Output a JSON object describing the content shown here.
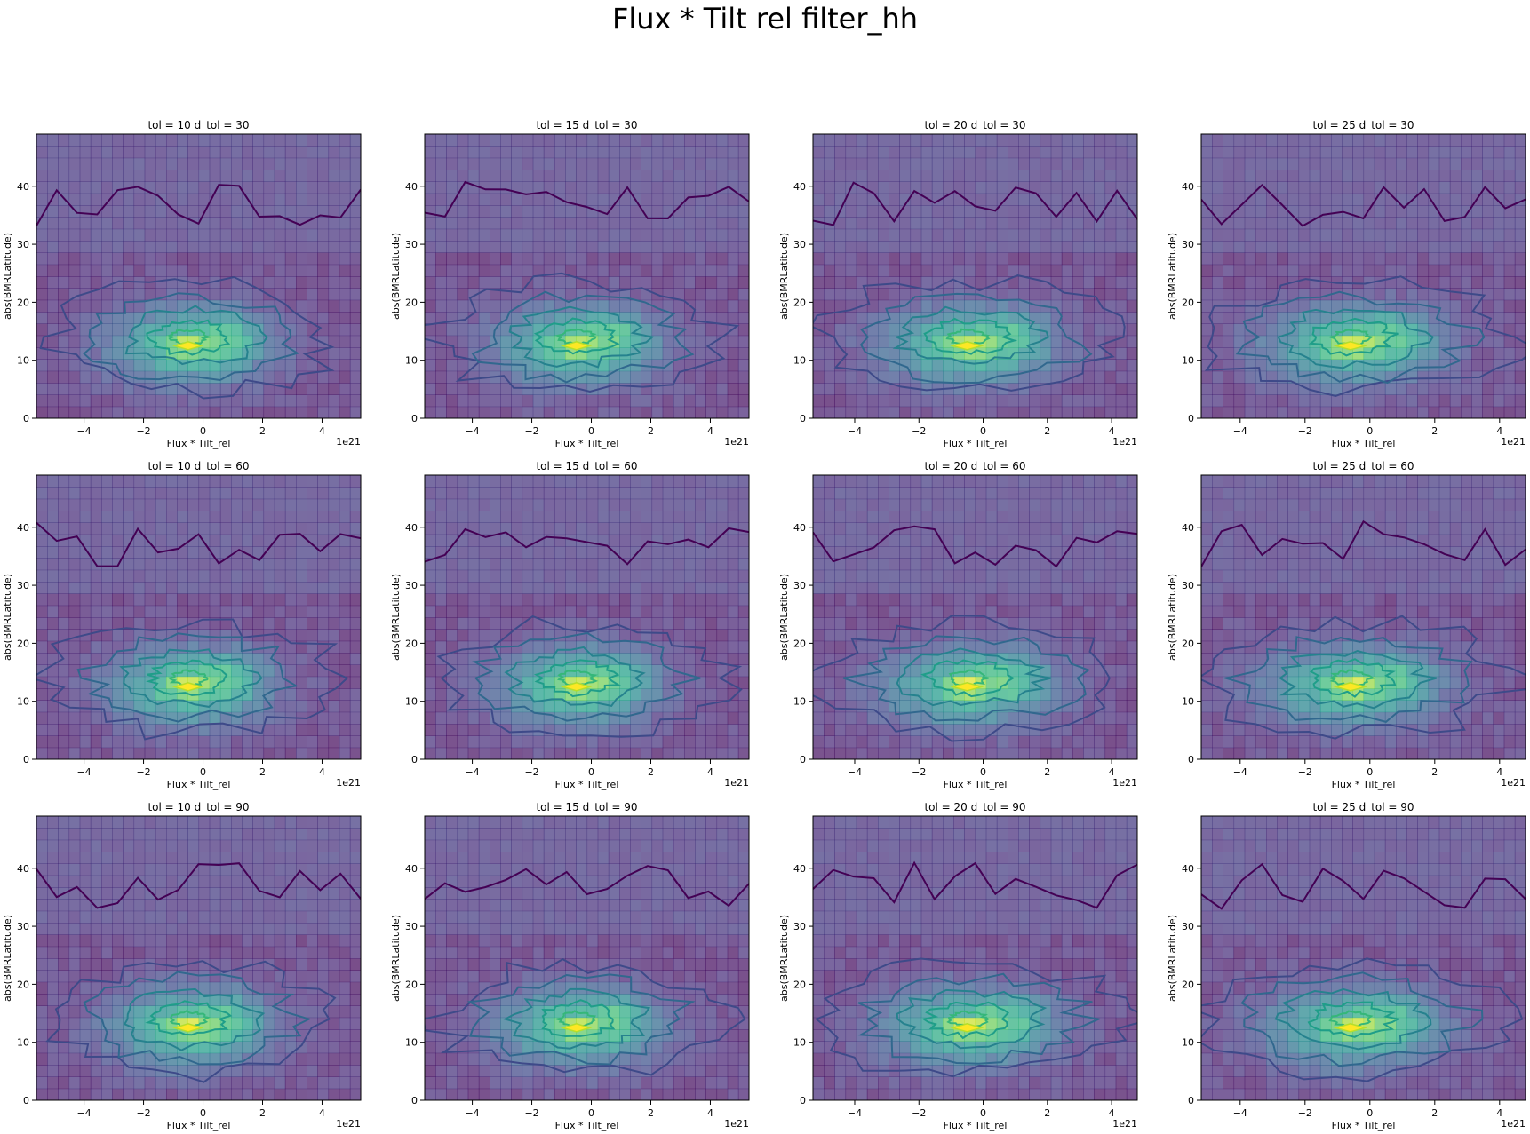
{
  "figure": {
    "suptitle": "Flux * Tilt rel filter_hh",
    "colormap": [
      "#440154",
      "#482878",
      "#3e4a89",
      "#31688e",
      "#26828e",
      "#1f9e89",
      "#35b779",
      "#6ece58",
      "#b5de2b",
      "#fde725"
    ],
    "background": "#ffffff"
  },
  "chart_data": [
    {
      "type": "heatmap",
      "title": "tol = 10 d_tol = 30",
      "xlabel": "Flux * Tilt_rel",
      "ylabel": "abs(BMRLatitude)",
      "x_offset_text": "1e21",
      "xlim": [
        -5.6,
        5.3
      ],
      "ylim": [
        0,
        49
      ],
      "xticks": [
        -4,
        -2,
        0,
        2,
        4
      ],
      "yticks": [
        0,
        10,
        20,
        30,
        40
      ],
      "overlay": "contour",
      "peak": {
        "x": -0.5,
        "y": 12.5
      }
    },
    {
      "type": "heatmap",
      "title": "tol = 15 d_tol = 30",
      "xlabel": "Flux * Tilt_rel",
      "ylabel": "abs(BMRLatitude)",
      "x_offset_text": "1e21",
      "xlim": [
        -5.6,
        5.3
      ],
      "ylim": [
        0,
        49
      ],
      "xticks": [
        -4,
        -2,
        0,
        2,
        4
      ],
      "yticks": [
        0,
        10,
        20,
        30,
        40
      ],
      "overlay": "contour",
      "peak": {
        "x": -0.5,
        "y": 12.5
      }
    },
    {
      "type": "heatmap",
      "title": "tol = 20 d_tol = 30",
      "xlabel": "Flux * Tilt_rel",
      "ylabel": "abs(BMRLatitude)",
      "x_offset_text": "1e21",
      "xlim": [
        -5.3,
        4.8
      ],
      "ylim": [
        0,
        49
      ],
      "xticks": [
        -4,
        -2,
        0,
        2,
        4
      ],
      "yticks": [
        0,
        10,
        20,
        30,
        40
      ],
      "overlay": "contour",
      "peak": {
        "x": -0.5,
        "y": 12.5
      }
    },
    {
      "type": "heatmap",
      "title": "tol = 25 d_tol = 30",
      "xlabel": "Flux * Tilt_rel",
      "ylabel": "abs(BMRLatitude)",
      "x_offset_text": "1e21",
      "xlim": [
        -5.2,
        4.8
      ],
      "ylim": [
        0,
        49
      ],
      "xticks": [
        -4,
        -2,
        0,
        2,
        4
      ],
      "yticks": [
        0,
        10,
        20,
        30,
        40
      ],
      "overlay": "contour",
      "peak": {
        "x": -0.6,
        "y": 12.5
      }
    },
    {
      "type": "heatmap",
      "title": "tol = 10 d_tol = 60",
      "xlabel": "Flux * Tilt_rel",
      "ylabel": "abs(BMRLatitude)",
      "x_offset_text": "1e21",
      "xlim": [
        -5.6,
        5.3
      ],
      "ylim": [
        0,
        49
      ],
      "xticks": [
        -4,
        -2,
        0,
        2,
        4
      ],
      "yticks": [
        0,
        10,
        20,
        30,
        40
      ],
      "overlay": "contour",
      "peak": {
        "x": -0.5,
        "y": 12.5
      }
    },
    {
      "type": "heatmap",
      "title": "tol = 15 d_tol = 60",
      "xlabel": "Flux * Tilt_rel",
      "ylabel": "abs(BMRLatitude)",
      "x_offset_text": "1e21",
      "xlim": [
        -5.6,
        5.3
      ],
      "ylim": [
        0,
        49
      ],
      "xticks": [
        -4,
        -2,
        0,
        2,
        4
      ],
      "yticks": [
        0,
        10,
        20,
        30,
        40
      ],
      "overlay": "contour",
      "peak": {
        "x": -0.5,
        "y": 12.5
      }
    },
    {
      "type": "heatmap",
      "title": "tol = 20 d_tol = 60",
      "xlabel": "Flux * Tilt_rel",
      "ylabel": "abs(BMRLatitude)",
      "x_offset_text": "1e21",
      "xlim": [
        -5.3,
        4.8
      ],
      "ylim": [
        0,
        49
      ],
      "xticks": [
        -4,
        -2,
        0,
        2,
        4
      ],
      "yticks": [
        0,
        10,
        20,
        30,
        40
      ],
      "overlay": "contour",
      "peak": {
        "x": -0.5,
        "y": 12.5
      }
    },
    {
      "type": "heatmap",
      "title": "tol = 25 d_tol = 60",
      "xlabel": "Flux * Tilt_rel",
      "ylabel": "abs(BMRLatitude)",
      "x_offset_text": "1e21",
      "xlim": [
        -5.2,
        4.8
      ],
      "ylim": [
        0,
        49
      ],
      "xticks": [
        -4,
        -2,
        0,
        2,
        4
      ],
      "yticks": [
        0,
        10,
        20,
        30,
        40
      ],
      "overlay": "contour",
      "peak": {
        "x": -0.6,
        "y": 12.5
      }
    },
    {
      "type": "heatmap",
      "title": "tol = 10 d_tol = 90",
      "xlabel": "Flux * Tilt_rel",
      "ylabel": "abs(BMRLatitude)",
      "x_offset_text": "1e21",
      "xlim": [
        -5.6,
        5.3
      ],
      "ylim": [
        0,
        49
      ],
      "xticks": [
        -4,
        -2,
        0,
        2,
        4
      ],
      "yticks": [
        0,
        10,
        20,
        30,
        40
      ],
      "overlay": "contour",
      "peak": {
        "x": -0.5,
        "y": 12.5
      }
    },
    {
      "type": "heatmap",
      "title": "tol = 15 d_tol = 90",
      "xlabel": "Flux * Tilt_rel",
      "ylabel": "abs(BMRLatitude)",
      "x_offset_text": "1e21",
      "xlim": [
        -5.6,
        5.3
      ],
      "ylim": [
        0,
        49
      ],
      "xticks": [
        -4,
        -2,
        0,
        2,
        4
      ],
      "yticks": [
        0,
        10,
        20,
        30,
        40
      ],
      "overlay": "contour",
      "peak": {
        "x": -0.5,
        "y": 12.5
      }
    },
    {
      "type": "heatmap",
      "title": "tol = 20 d_tol = 90",
      "xlabel": "Flux * Tilt_rel",
      "ylabel": "abs(BMRLatitude)",
      "x_offset_text": "1e21",
      "xlim": [
        -5.3,
        4.8
      ],
      "ylim": [
        0,
        49
      ],
      "xticks": [
        -4,
        -2,
        0,
        2,
        4
      ],
      "yticks": [
        0,
        10,
        20,
        30,
        40
      ],
      "overlay": "contour",
      "peak": {
        "x": -0.5,
        "y": 12.5
      }
    },
    {
      "type": "heatmap",
      "title": "tol = 25 d_tol = 90",
      "xlabel": "Flux * Tilt_rel",
      "ylabel": "abs(BMRLatitude)",
      "x_offset_text": "1e21",
      "xlim": [
        -5.2,
        4.8
      ],
      "ylim": [
        0,
        49
      ],
      "xticks": [
        -4,
        -2,
        0,
        2,
        4
      ],
      "yticks": [
        0,
        10,
        20,
        30,
        40
      ],
      "overlay": "contour",
      "peak": {
        "x": -0.6,
        "y": 12.5
      }
    }
  ]
}
